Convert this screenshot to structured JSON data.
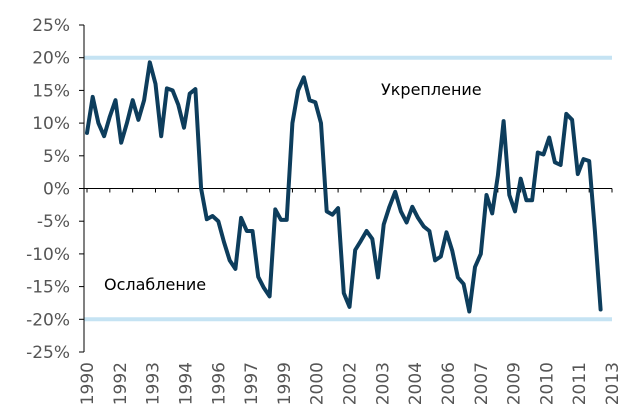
{
  "chart_data": {
    "type": "line",
    "title": "",
    "xlabel": "",
    "ylabel": "",
    "ylim": [
      -25,
      25
    ],
    "ytick_labels": [
      "25%",
      "20%",
      "15%",
      "10%",
      "5%",
      "0%",
      "-5%",
      "-10%",
      "-15%",
      "-20%",
      "-25%"
    ],
    "xtick_labels": [
      "1990",
      "1992",
      "1993",
      "1994",
      "1996",
      "1997",
      "1999",
      "2000",
      "2002",
      "2003",
      "2004",
      "2006",
      "2007",
      "2009",
      "2010",
      "2011",
      "2013"
    ],
    "grid": false,
    "reference_lines": [
      {
        "value": 20,
        "color": "#c5e3f3"
      },
      {
        "value": -20,
        "color": "#c5e3f3"
      }
    ],
    "annotations": [
      {
        "text": "Укрепление"
      },
      {
        "text": "Ослабление"
      }
    ],
    "series": [
      {
        "color": "#0d3d5c",
        "x": [
          1990.0,
          1990.25,
          1990.5,
          1990.75,
          1991.0,
          1991.25,
          1991.5,
          1991.75,
          1992.0,
          1992.25,
          1992.5,
          1992.75,
          1993.0,
          1993.25,
          1993.5,
          1993.75,
          1994.0,
          1994.25,
          1994.5,
          1994.75,
          1995.0,
          1995.25,
          1995.5,
          1995.75,
          1996.0,
          1996.25,
          1996.5,
          1996.75,
          1997.0,
          1997.25,
          1997.5,
          1997.75,
          1998.0,
          1998.25,
          1998.5,
          1998.75,
          1999.0,
          1999.25,
          1999.5,
          1999.75,
          2000.0,
          2000.25,
          2000.5,
          2000.75,
          2001.0,
          2001.25,
          2001.5,
          2001.75,
          2002.0,
          2002.25,
          2002.5,
          2002.75,
          2003.0,
          2003.25,
          2003.5,
          2003.75,
          2004.0,
          2004.25,
          2004.5,
          2004.75,
          2005.0,
          2005.25,
          2005.5,
          2005.75,
          2006.0,
          2006.25,
          2006.5,
          2006.75,
          2007.0,
          2007.25,
          2007.5,
          2007.75,
          2008.0,
          2008.25,
          2008.5,
          2008.75,
          2009.0,
          2009.25,
          2009.5,
          2009.75,
          2010.0,
          2010.25,
          2010.5,
          2010.75,
          2011.0,
          2011.25,
          2011.5,
          2011.75,
          2012.0,
          2012.25,
          2012.5
        ],
        "values": [
          8.5,
          14,
          10,
          8,
          11,
          13.5,
          7,
          10,
          13.5,
          10.5,
          13.5,
          19.3,
          16,
          8,
          15.3,
          15,
          12.8,
          9.3,
          14.5,
          15.2,
          0,
          -4.7,
          -4.2,
          -5,
          -8.2,
          -11,
          -12.3,
          -4.5,
          -6.5,
          -6.5,
          -13.5,
          -15.2,
          -16.5,
          -3.2,
          -4.8,
          -4.8,
          10,
          15,
          17,
          13.5,
          13.2,
          10,
          -3.5,
          -4,
          -3,
          -16,
          -18.1,
          -9.4,
          -8,
          -6.5,
          -7.7,
          -13.6,
          -5.5,
          -2.8,
          -0.5,
          -3.5,
          -5.2,
          -2.8,
          -4.5,
          -5.8,
          -6.5,
          -11,
          -10.4,
          -6.7,
          -9.5,
          -13.6,
          -14.6,
          -18.8,
          -12,
          -10,
          -1,
          -3.8,
          2,
          10.3,
          -1,
          -3.5,
          1.5,
          -1.8,
          -1.8,
          5.5,
          5.2,
          7.8,
          4,
          3.6,
          11.4,
          10.5,
          2.2,
          4.5,
          4.2,
          -6.5,
          -18.5
        ]
      }
    ]
  }
}
